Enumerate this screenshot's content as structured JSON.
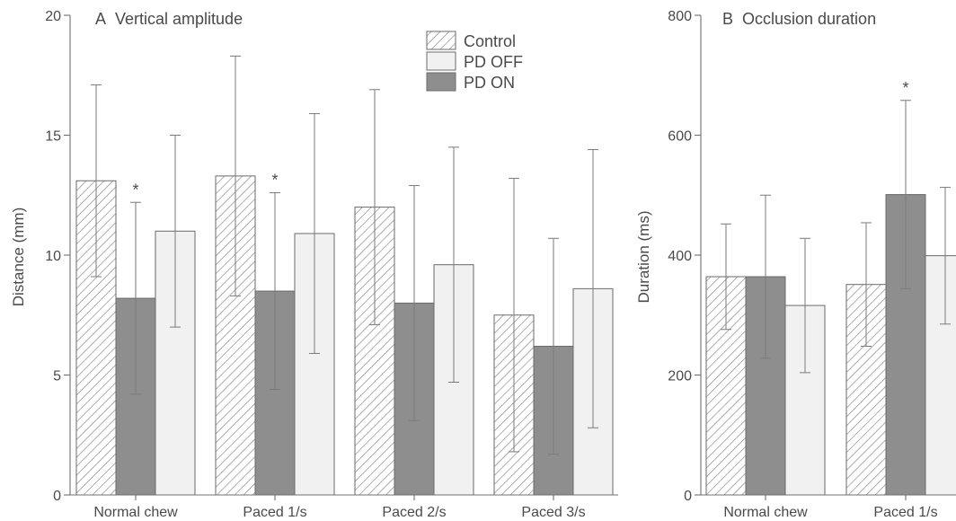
{
  "chart_data": [
    {
      "type": "bar",
      "panel_letter": "A",
      "title": "Vertical amplitude",
      "ylabel": "Distance (mm)",
      "ylim": [
        0,
        20
      ],
      "yticks": [
        0,
        5,
        10,
        15,
        20
      ],
      "categories": [
        "Normal chew",
        "Paced 1/s",
        "Paced 2/s",
        "Paced 3/s"
      ],
      "series": [
        {
          "name": "Control",
          "style": "hatch",
          "values": [
            13.1,
            13.3,
            12.0,
            7.5
          ],
          "errors": [
            4.0,
            5.0,
            4.9,
            5.7
          ]
        },
        {
          "name": "PD ON",
          "style": "dark",
          "values": [
            8.2,
            8.5,
            8.0,
            6.2
          ],
          "errors": [
            4.0,
            4.1,
            4.9,
            4.5
          ]
        },
        {
          "name": "PD OFF",
          "style": "light",
          "values": [
            11.0,
            10.9,
            9.6,
            8.6
          ],
          "errors": [
            4.0,
            5.0,
            4.9,
            5.8
          ]
        }
      ],
      "significance": [
        {
          "category": 0,
          "series": 1,
          "label": "*"
        },
        {
          "category": 1,
          "series": 1,
          "label": "*"
        }
      ],
      "legend": {
        "placement": "top-right",
        "entries": [
          {
            "label": "Control",
            "style": "hatch"
          },
          {
            "label": "PD OFF",
            "style": "light"
          },
          {
            "label": "PD ON",
            "style": "dark"
          }
        ]
      },
      "grid": false
    },
    {
      "type": "bar",
      "panel_letter": "B",
      "title": "Occlusion duration",
      "ylabel": "Duration (ms)",
      "ylim": [
        0,
        800
      ],
      "yticks": [
        0,
        200,
        400,
        600,
        800
      ],
      "categories": [
        "Normal chew",
        "Paced 1/s"
      ],
      "series": [
        {
          "name": "Control",
          "style": "hatch",
          "values": [
            364,
            351
          ],
          "errors": [
            88,
            103
          ]
        },
        {
          "name": "PD ON",
          "style": "dark",
          "values": [
            364,
            501
          ],
          "errors": [
            136,
            157
          ]
        },
        {
          "name": "PD OFF",
          "style": "light",
          "values": [
            316,
            399
          ],
          "errors": [
            112,
            114
          ]
        }
      ],
      "significance": [
        {
          "category": 1,
          "series": 1,
          "label": "*"
        }
      ],
      "grid": false
    }
  ],
  "colors": {
    "axis": "#707070",
    "text": "#4a4a4a",
    "hatch_line": "#7a7a7a",
    "bar_light": "#f1f1f1",
    "bar_dark": "#8e8e8e",
    "error_bar": "#7a7a7a"
  }
}
